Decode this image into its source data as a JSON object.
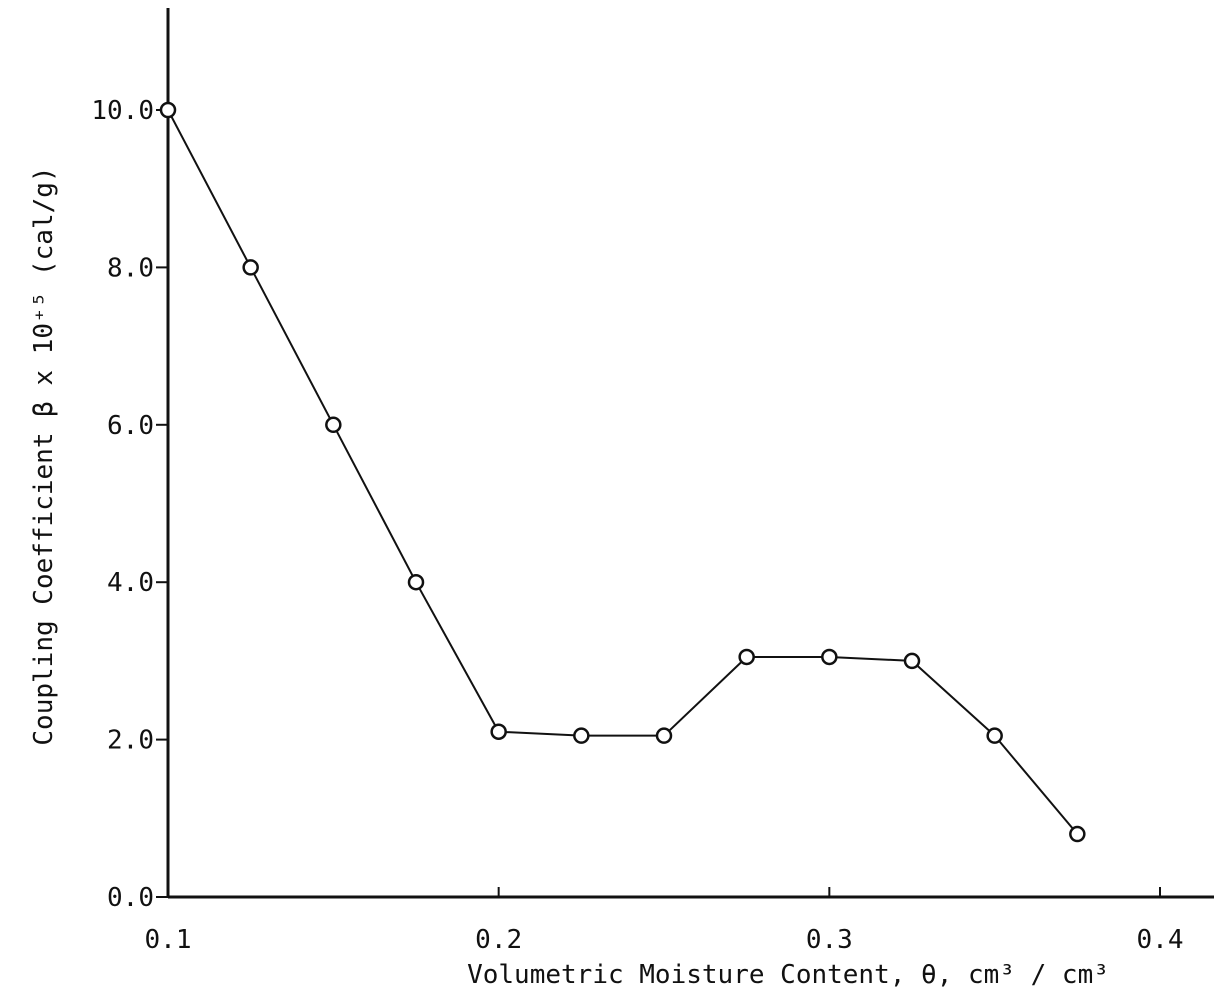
{
  "chart_data": {
    "type": "line",
    "title": "",
    "xlabel": "Volumetric Moisture Content, θ, cm³ / cm³",
    "ylabel": "Coupling Coefficient β x 10⁺⁵ (cal/g)",
    "xlim": [
      0.1,
      0.4
    ],
    "ylim": [
      0.0,
      10.0
    ],
    "x_ticks": [
      0.1,
      0.2,
      0.3,
      0.4
    ],
    "x_tick_labels": [
      "0.1",
      "0.2",
      "0.3",
      "0.4"
    ],
    "y_ticks": [
      0.0,
      2.0,
      4.0,
      6.0,
      8.0,
      10.0
    ],
    "y_tick_labels": [
      "0.0",
      "2.0",
      "4.0",
      "6.0",
      "8.0",
      "10.0"
    ],
    "grid": false,
    "marker": "open-circle",
    "series": [
      {
        "x": [
          0.1,
          0.125,
          0.15,
          0.175,
          0.2,
          0.225,
          0.25,
          0.275,
          0.3,
          0.325,
          0.35,
          0.375
        ],
        "y": [
          10.0,
          8.0,
          6.0,
          4.0,
          2.1,
          2.05,
          2.05,
          3.05,
          3.05,
          3.0,
          2.05,
          0.8
        ]
      }
    ]
  }
}
